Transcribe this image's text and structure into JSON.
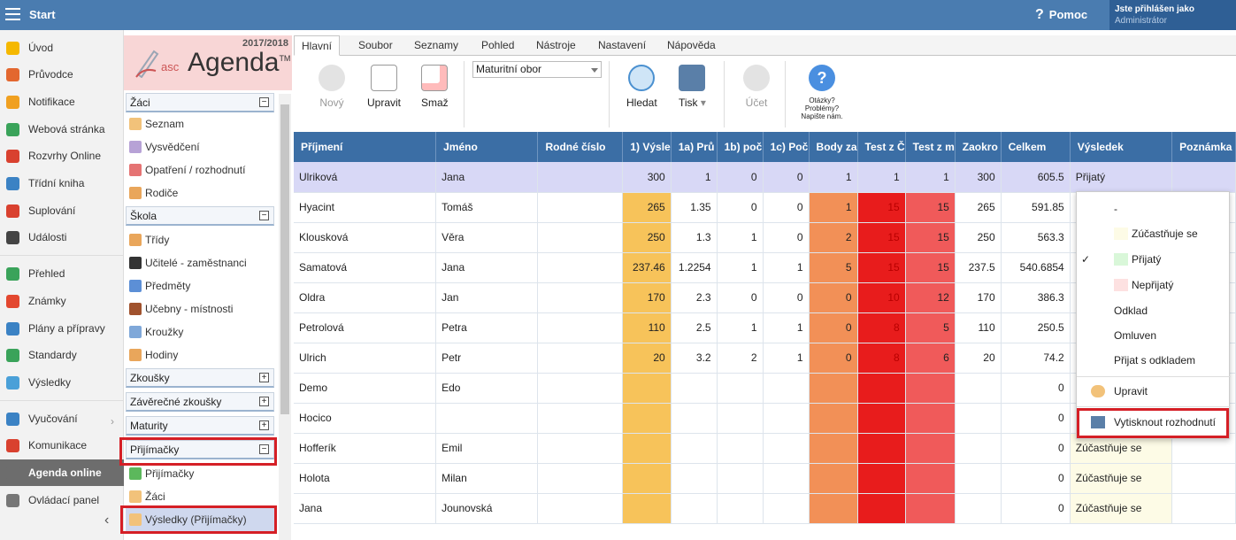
{
  "topbar": {
    "start": "Start",
    "help": "Pomoc",
    "user_line1": "Jste přihlášen jako",
    "user_line2": "Administrátor"
  },
  "leftnav": [
    {
      "label": "Úvod",
      "icon": "star-icon",
      "color": "#f5b800"
    },
    {
      "label": "Průvodce",
      "icon": "wand-icon",
      "color": "#e3672f"
    },
    {
      "label": "Notifikace",
      "icon": "envelope-icon",
      "color": "#f0a020"
    },
    {
      "label": "Webová stránka",
      "icon": "home-icon",
      "color": "#3aa35a"
    },
    {
      "label": "Rozvrhy Online",
      "icon": "calendar-icon",
      "color": "#d9412f"
    },
    {
      "label": "Třídní kniha",
      "icon": "book-icon",
      "color": "#3b82c4"
    },
    {
      "label": "Suplování",
      "icon": "lifebuoy-icon",
      "color": "#d9412f"
    },
    {
      "label": "Události",
      "icon": "calendar-grid-icon",
      "color": "#444"
    },
    {
      "label": "Přehled",
      "icon": "check-circle-icon",
      "color": "#3aa35a"
    },
    {
      "label": "Známky",
      "icon": "grade-icon",
      "color": "#e3472f"
    },
    {
      "label": "Plány a přípravy",
      "icon": "briefcase-icon",
      "color": "#3b82c4"
    },
    {
      "label": "Standardy",
      "icon": "shield-icon",
      "color": "#3aa35a"
    },
    {
      "label": "Výsledky",
      "icon": "bar-chart-icon",
      "color": "#4aa0d8"
    },
    {
      "label": "Vyučování",
      "icon": "laptop-icon",
      "color": "#3b82c4"
    },
    {
      "label": "Komunikace",
      "icon": "chat-icon",
      "color": "#d9412f"
    },
    {
      "label": "Agenda online",
      "icon": "pen-icon",
      "color": "#6d6d6d"
    },
    {
      "label": "Ovládací panel",
      "icon": "gear-icon",
      "color": "#777"
    }
  ],
  "logo": {
    "year": "2017/2018",
    "asc": "asc",
    "agenda": "Agenda",
    "tm": "TM"
  },
  "tree": {
    "zaci": {
      "title": "Žáci",
      "items": [
        "Seznam",
        "Vysvědčení",
        "Opatření / rozhodnutí",
        "Rodiče"
      ]
    },
    "skola": {
      "title": "Škola",
      "items": [
        "Třídy",
        "Učitelé - zaměstnanci",
        "Předměty",
        "Učebny - místnosti",
        "Kroužky",
        "Hodiny"
      ]
    },
    "zkousky": "Zkoušky",
    "zaverecne": "Závěrečné zkoušky",
    "maturity": "Maturity",
    "prijimacky": {
      "title": "Přijímačky",
      "items": [
        "Přijímačky",
        "Žáci",
        "Výsledky (Přijímačky)"
      ]
    }
  },
  "tabs": [
    "Hlavní",
    "Soubor",
    "Seznamy",
    "Pohled",
    "Nástroje",
    "Nastavení",
    "Nápověda"
  ],
  "toolbar": {
    "new": "Nový",
    "edit": "Upravit",
    "delete": "Smaž",
    "combo": "Maturitní obor",
    "search": "Hledat",
    "print": "Tisk",
    "account": "Účet",
    "faq": "Otázky? Problémy? Napište nám."
  },
  "grid": {
    "headers": [
      "Příjmení",
      "Jméno",
      "Rodné číslo",
      "1) Výsle",
      "1a) Prů",
      "1b) poč",
      "1c) Poč",
      "Body za",
      "Test z Č",
      "Test z m",
      "Zaokro",
      "Celkem",
      "Výsledek",
      "Poznámka"
    ],
    "rows": [
      [
        "Ulriková",
        "Jana",
        "",
        "300",
        "1",
        "0",
        "0",
        "1",
        "1",
        "1",
        "300",
        "605.5",
        "Přijatý",
        ""
      ],
      [
        "Hyacint",
        "Tomáš",
        "",
        "265",
        "1.35",
        "0",
        "0",
        "1",
        "15",
        "15",
        "265",
        "591.85",
        "",
        ""
      ],
      [
        "Klousková",
        "Věra",
        "",
        "250",
        "1.3",
        "1",
        "0",
        "2",
        "15",
        "15",
        "250",
        "563.3",
        "",
        ""
      ],
      [
        "Samatová",
        "Jana",
        "",
        "237.46",
        "1.2254",
        "1",
        "1",
        "5",
        "15",
        "15",
        "237.5",
        "540.6854",
        "",
        ""
      ],
      [
        "Oldra",
        "Jan",
        "",
        "170",
        "2.3",
        "0",
        "0",
        "0",
        "10",
        "12",
        "170",
        "386.3",
        "",
        ""
      ],
      [
        "Petrolová",
        "Petra",
        "",
        "110",
        "2.5",
        "1",
        "1",
        "0",
        "8",
        "5",
        "110",
        "250.5",
        "",
        ""
      ],
      [
        "Ulrich",
        "Petr",
        "",
        "20",
        "3.2",
        "2",
        "1",
        "0",
        "8",
        "6",
        "20",
        "74.2",
        "",
        ""
      ],
      [
        "Demo",
        "Edo",
        "",
        "",
        "",
        "",
        "",
        "",
        "",
        "",
        "",
        "0",
        "",
        ""
      ],
      [
        "Hocico",
        "",
        "",
        "",
        "",
        "",
        "",
        "",
        "",
        "",
        "",
        "0",
        "",
        ""
      ],
      [
        "Hofferík",
        "Emil",
        "",
        "",
        "",
        "",
        "",
        "",
        "",
        "",
        "",
        "0",
        "Zúčastňuje se",
        ""
      ],
      [
        "Holota",
        "Milan",
        "",
        "",
        "",
        "",
        "",
        "",
        "",
        "",
        "",
        "0",
        "Zúčastňuje se",
        ""
      ],
      [
        "Jana",
        "Jounovská",
        "",
        "",
        "",
        "",
        "",
        "",
        "",
        "",
        "",
        "0",
        "Zúčastňuje se",
        ""
      ]
    ]
  },
  "dropdown": {
    "dash": "-",
    "options": [
      "Zúčastňuje se",
      "Přijatý",
      "Nepřijatý",
      "Odklad",
      "Omluven",
      "Přijat s odkladem"
    ],
    "checked": "✓",
    "edit": "Upravit",
    "print": "Vytisknout rozhodnutí"
  },
  "colors": {
    "header": "#3b6ea5",
    "topbar": "#4a7cb0",
    "highlight": "#d51f26"
  }
}
